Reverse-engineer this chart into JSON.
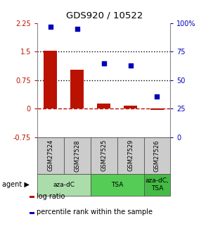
{
  "title": "GDS920 / 10522",
  "samples": [
    "GSM27524",
    "GSM27528",
    "GSM27525",
    "GSM27529",
    "GSM27526"
  ],
  "log_ratios": [
    1.52,
    1.02,
    0.13,
    0.08,
    -0.03
  ],
  "percentile_ranks": [
    97,
    95,
    65,
    63,
    36
  ],
  "ylim_left": [
    -0.75,
    2.25
  ],
  "ylim_right": [
    0,
    100
  ],
  "yticks_left": [
    -0.75,
    0,
    0.75,
    1.5,
    2.25
  ],
  "yticks_right": [
    0,
    25,
    50,
    75,
    100
  ],
  "yticklabels_left": [
    "-0.75",
    "0",
    "0.75",
    "1.5",
    "2.25"
  ],
  "yticklabels_right": [
    "0",
    "25",
    "50",
    "75",
    "100%"
  ],
  "dotted_lines": [
    1.5,
    0.75
  ],
  "dashed_line": 0,
  "bar_color": "#bb1100",
  "scatter_color": "#0000bb",
  "groups": [
    {
      "label": "aza-dC",
      "samples": [
        0,
        1
      ],
      "color": "#aaddaa"
    },
    {
      "label": "TSA",
      "samples": [
        2,
        3
      ],
      "color": "#55cc55"
    },
    {
      "label": "aza-dC,\nTSA",
      "samples": [
        4
      ],
      "color": "#44bb44"
    }
  ],
  "agent_label": "agent",
  "legend_log_ratio": "log ratio",
  "legend_percentile": "percentile rank within the sample",
  "bar_width": 0.5,
  "scatter_size": 22,
  "sample_box_color": "#cccccc",
  "box_edge_color": "#555555"
}
